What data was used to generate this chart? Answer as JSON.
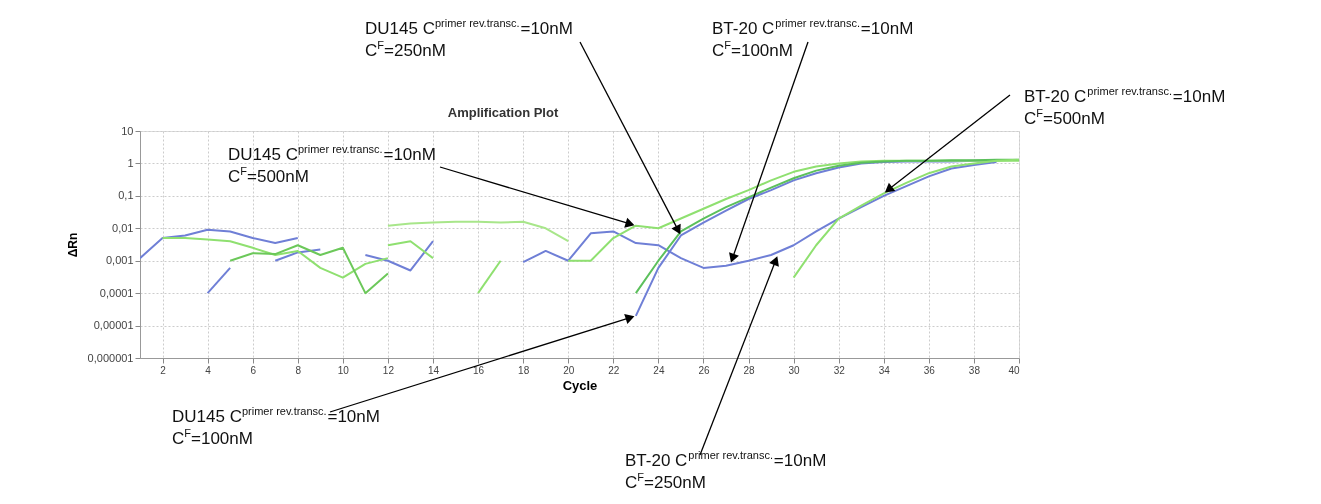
{
  "chart_data": {
    "type": "line",
    "title": "Amplification Plot",
    "xlabel": "Cycle",
    "ylabel": "ΔRn",
    "log": "y",
    "grid": true,
    "xlim": [
      1,
      40
    ],
    "ylim": [
      1e-06,
      10
    ],
    "xticks": [
      2,
      4,
      6,
      8,
      10,
      12,
      14,
      16,
      18,
      20,
      22,
      24,
      26,
      28,
      30,
      32,
      34,
      36,
      38,
      40
    ],
    "yticks": [
      10,
      1,
      {
        "value": 0.1,
        "label": "0,1"
      },
      {
        "value": 0.01,
        "label": "0,01"
      },
      {
        "value": 0.001,
        "label": "0,001"
      },
      {
        "value": 0.0001,
        "label": "0,0001"
      },
      {
        "value": 1e-05,
        "label": "0,00001"
      },
      {
        "value": 1e-06,
        "label": "0,000001"
      }
    ],
    "series": [
      {
        "color": "#6f7fd6",
        "x": [
          1,
          2,
          3,
          4,
          5,
          6,
          7,
          8
        ],
        "values": [
          0.0012,
          0.005,
          0.006,
          0.009,
          0.008,
          0.005,
          0.0035,
          0.005
        ]
      },
      {
        "color": "#6f7fd6",
        "x": [
          4,
          5
        ],
        "values": [
          0.0001,
          0.0006
        ]
      },
      {
        "color": "#6f7fd6",
        "x": [
          7,
          8,
          9
        ],
        "values": [
          0.001,
          0.0018,
          0.0022
        ]
      },
      {
        "color": "#6f7fd6",
        "x": [
          11,
          12,
          13,
          14
        ],
        "values": [
          0.0015,
          0.001,
          0.0005,
          0.004
        ]
      },
      {
        "color": "#6f7fd6",
        "x": [
          18,
          19,
          20,
          21,
          22,
          23,
          24,
          25,
          26,
          27,
          28,
          29,
          30,
          31,
          32,
          33,
          34,
          35,
          36,
          37,
          38,
          39
        ],
        "values": [
          0.0009,
          0.002,
          0.001,
          0.007,
          0.008,
          0.0035,
          0.003,
          0.0012,
          0.0006,
          0.0007,
          0.001,
          0.0015,
          0.003,
          0.008,
          0.02,
          0.045,
          0.1,
          0.2,
          0.4,
          0.7,
          0.9,
          1.1
        ]
      },
      {
        "color": "#6f7fd6",
        "x": [
          23,
          24,
          25,
          26,
          27,
          28,
          29,
          30,
          31,
          32,
          33,
          34,
          35,
          36,
          37,
          38,
          39
        ],
        "values": [
          2e-05,
          0.0006,
          0.006,
          0.015,
          0.035,
          0.08,
          0.15,
          0.3,
          0.5,
          0.75,
          1,
          1.1,
          1.15,
          1.15,
          1.15,
          1.2,
          1.2
        ]
      },
      {
        "color": "#8fe070",
        "x": [
          2,
          3,
          4,
          5,
          6,
          7,
          8,
          9,
          10,
          11,
          12
        ],
        "values": [
          0.005,
          0.005,
          0.0045,
          0.004,
          0.0025,
          0.0015,
          0.002,
          0.0006,
          0.0003,
          0.0008,
          0.0012
        ]
      },
      {
        "color": "#6cc85a",
        "x": [
          5,
          6,
          7,
          8,
          9,
          10,
          11,
          12
        ],
        "values": [
          0.001,
          0.0017,
          0.0016,
          0.003,
          0.0015,
          0.0025,
          0.0001,
          0.0004
        ]
      },
      {
        "color": "#8fe070",
        "x": [
          12,
          13,
          14
        ],
        "values": [
          0.003,
          0.004,
          0.0012
        ]
      },
      {
        "color": "#8fe070",
        "x": [
          16,
          17
        ],
        "values": [
          0.0001,
          0.001
        ]
      },
      {
        "color": "#a8e68a",
        "x": [
          12,
          13,
          14,
          15,
          16,
          17,
          18,
          19,
          20
        ],
        "values": [
          0.012,
          0.014,
          0.015,
          0.016,
          0.016,
          0.015,
          0.016,
          0.01,
          0.004
        ]
      },
      {
        "color": "#8fe070",
        "x": [
          20,
          21,
          22,
          23,
          24,
          25,
          26,
          27,
          28,
          29,
          30,
          31,
          32,
          33,
          34,
          35,
          36,
          37,
          38,
          39,
          40
        ],
        "values": [
          0.001,
          0.001,
          0.005,
          0.012,
          0.01,
          0.02,
          0.04,
          0.08,
          0.15,
          0.3,
          0.55,
          0.8,
          1,
          1.15,
          1.2,
          1.2,
          1.2,
          1.2,
          1.2,
          1.2,
          1.2
        ]
      },
      {
        "color": "#5cc05c",
        "x": [
          23,
          24,
          25,
          26,
          27,
          28,
          29,
          30,
          31,
          32,
          33,
          34,
          35,
          36,
          37,
          38,
          39,
          40
        ],
        "values": [
          0.0001,
          0.001,
          0.008,
          0.02,
          0.045,
          0.09,
          0.18,
          0.35,
          0.6,
          0.85,
          1.05,
          1.15,
          1.2,
          1.2,
          1.25,
          1.25,
          1.3,
          1.3
        ]
      },
      {
        "color": "#8fe070",
        "x": [
          30,
          31,
          32,
          33,
          34,
          35,
          36,
          37,
          38,
          39,
          40
        ],
        "values": [
          0.0003,
          0.003,
          0.02,
          0.05,
          0.12,
          0.25,
          0.5,
          0.8,
          1,
          1.2,
          1.3
        ]
      }
    ],
    "annotations": [
      {
        "text": "DU145 C$^{primer rev.transc.}$=10nM",
        "x": 25,
        "y": 0.006
      },
      "C$^{F}$=250nM",
      {
        "text": "BT-20 C$^{primer rev.transc.}$=10nM",
        "x": 27.2,
        "y": 0.0008
      },
      "C$^{F}$=100nM",
      {
        "text": "BT-20 C$^{primer rev.transc.}$=10nM",
        "x": 34,
        "y": 0.12
      },
      "C$^{F}$=500nM",
      {
        "text": "DU145 C$^{primer rev.transc.}$=10nM",
        "x": 23,
        "y": 0.012
      },
      "C$^{F}$=500nM",
      {
        "text": "DU145 C$^{primer rev.transc.}$=10nM",
        "x": 23,
        "y": 2e-05
      },
      "C$^{F}$=100nM",
      {
        "text": "BT-20 C$^{primer rev.transc.}$=10nM",
        "x": 29.3,
        "y": 0.0015
      },
      "C$^{F}$=250nM"
    ]
  }
}
